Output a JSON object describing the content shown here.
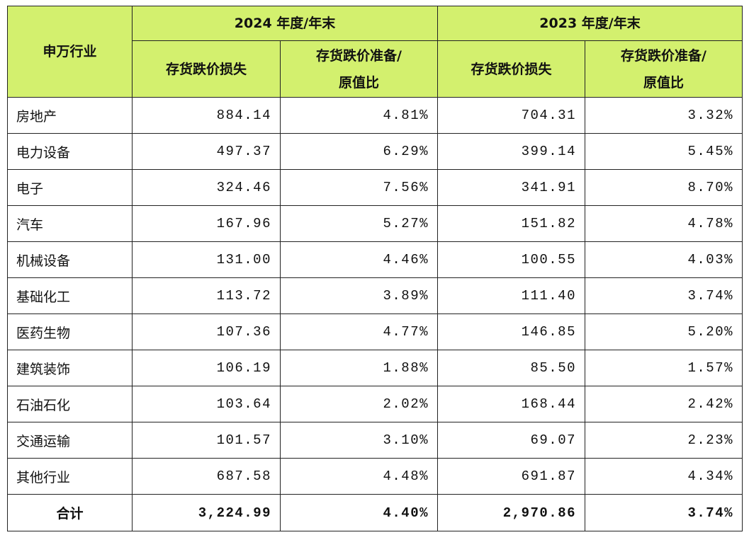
{
  "table": {
    "header": {
      "industry": "申万行业",
      "groups": [
        "2024 年度/年末",
        "2023 年度/年末"
      ],
      "columns": [
        "存货跌价损失",
        "存货跌价准备/\n原值比",
        "存货跌价损失",
        "存货跌价准备/\n原值比"
      ]
    },
    "rows": [
      [
        "房地产",
        "884.14",
        "4.81%",
        "704.31",
        "3.32%"
      ],
      [
        "电力设备",
        "497.37",
        "6.29%",
        "399.14",
        "5.45%"
      ],
      [
        "电子",
        "324.46",
        "7.56%",
        "341.91",
        "8.70%"
      ],
      [
        "汽车",
        "167.96",
        "5.27%",
        "151.82",
        "4.78%"
      ],
      [
        "机械设备",
        "131.00",
        "4.46%",
        "100.55",
        "4.03%"
      ],
      [
        "基础化工",
        "113.72",
        "3.89%",
        "111.40",
        "3.74%"
      ],
      [
        "医药生物",
        "107.36",
        "4.77%",
        "146.85",
        "5.20%"
      ],
      [
        "建筑装饰",
        "106.19",
        "1.88%",
        "85.50",
        "1.57%"
      ],
      [
        "石油石化",
        "103.64",
        "2.02%",
        "168.44",
        "2.42%"
      ],
      [
        "交通运输",
        "101.57",
        "3.10%",
        "69.07",
        "2.23%"
      ],
      [
        "其他行业",
        "687.58",
        "4.48%",
        "691.87",
        "4.34%"
      ]
    ],
    "total": [
      "合计",
      "3,224.99",
      "4.40%",
      "2,970.86",
      "3.74%"
    ]
  }
}
